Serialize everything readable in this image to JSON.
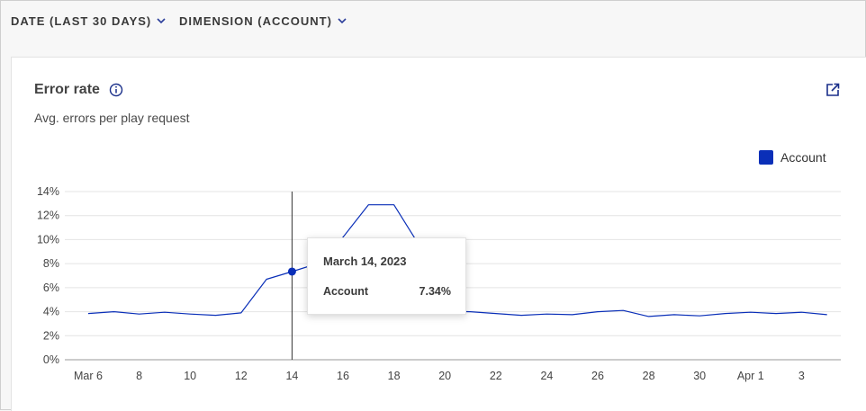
{
  "toolbar": {
    "date_filter": "DATE (LAST 30 DAYS)",
    "dimension_filter": "DIMENSION (ACCOUNT)"
  },
  "card": {
    "title": "Error rate",
    "subtitle": "Avg. errors per play request",
    "legend_label": "Account",
    "accent_color": "#0a2fb8",
    "icons": [
      "info-icon",
      "export-icon",
      "chevron-down-icon"
    ]
  },
  "tooltip": {
    "date": "March 14, 2023",
    "series": "Account",
    "value": "7.34%"
  },
  "chart_data": {
    "type": "line",
    "title": "Error rate",
    "subtitle": "Avg. errors per play request",
    "xlabel": "",
    "ylabel": "",
    "ylim": [
      0,
      14
    ],
    "yticks": [
      "0%",
      "2%",
      "4%",
      "6%",
      "8%",
      "10%",
      "12%",
      "14%"
    ],
    "xtick_labels": [
      "Mar 6",
      "8",
      "10",
      "12",
      "14",
      "16",
      "18",
      "20",
      "22",
      "24",
      "26",
      "28",
      "30",
      "Apr 1",
      "3"
    ],
    "x": [
      "2023-03-06",
      "2023-03-07",
      "2023-03-08",
      "2023-03-09",
      "2023-03-10",
      "2023-03-11",
      "2023-03-12",
      "2023-03-13",
      "2023-03-14",
      "2023-03-15",
      "2023-03-16",
      "2023-03-17",
      "2023-03-18",
      "2023-03-19",
      "2023-03-20",
      "2023-03-21",
      "2023-03-22",
      "2023-03-23",
      "2023-03-24",
      "2023-03-25",
      "2023-03-26",
      "2023-03-27",
      "2023-03-28",
      "2023-03-29",
      "2023-03-30",
      "2023-03-31",
      "2023-04-01",
      "2023-04-02",
      "2023-04-03",
      "2023-04-04"
    ],
    "series": [
      {
        "name": "Account",
        "color": "#0a2fb8",
        "values": [
          3.85,
          4.0,
          3.8,
          3.95,
          3.8,
          3.7,
          3.9,
          6.7,
          7.34,
          8.0,
          10.2,
          12.9,
          12.9,
          9.5,
          4.05,
          4.0,
          3.85,
          3.7,
          3.8,
          3.75,
          4.0,
          4.1,
          3.6,
          3.75,
          3.65,
          3.85,
          3.95,
          3.85,
          3.95,
          3.75
        ]
      }
    ],
    "highlight": {
      "x": "2023-03-14",
      "value": 7.34
    },
    "grid": true,
    "legend_position": "top-right"
  }
}
